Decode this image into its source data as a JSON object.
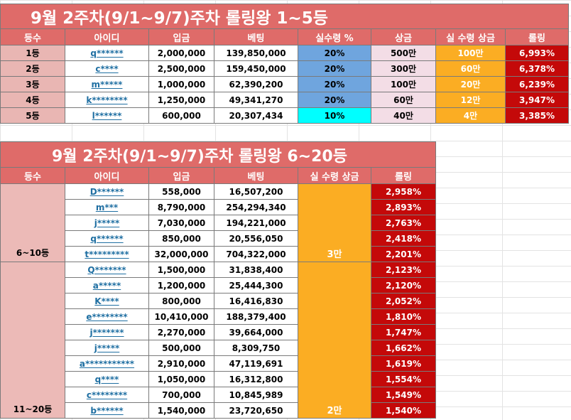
{
  "top": {
    "title": "9월 2주차(9/1~9/7)주차 롤링왕 1~5등",
    "headers": [
      "등수",
      "아이디",
      "입금",
      "베팅",
      "실수령 %",
      "상금",
      "실 수령 상금",
      "롤링"
    ],
    "rows": [
      {
        "rank": "1등",
        "id": "q******",
        "deposit": "2,000,000",
        "bet": "139,850,000",
        "pct": "20%",
        "prize": "500만",
        "received": "100만",
        "rolling": "6,993%"
      },
      {
        "rank": "2등",
        "id": "c****",
        "deposit": "2,500,000",
        "bet": "159,450,000",
        "pct": "20%",
        "prize": "300만",
        "received": "60만",
        "rolling": "6,378%"
      },
      {
        "rank": "3등",
        "id": "m*****",
        "deposit": "1,000,000",
        "bet": "62,390,200",
        "pct": "20%",
        "prize": "100만",
        "received": "20만",
        "rolling": "6,239%"
      },
      {
        "rank": "4등",
        "id": "k********",
        "deposit": "1,250,000",
        "bet": "49,341,270",
        "pct": "20%",
        "prize": "60만",
        "received": "12만",
        "rolling": "3,947%"
      },
      {
        "rank": "5등",
        "id": "l******",
        "deposit": "600,000",
        "bet": "20,307,434",
        "pct": "10%",
        "prize": "40만",
        "received": "4만",
        "rolling": "3,385%"
      }
    ]
  },
  "bottom": {
    "title": "9월 2주차(9/1~9/7)주차 롤링왕 6~20등",
    "headers": [
      "등수",
      "아이디",
      "입금",
      "베팅",
      "실 수령 상금",
      "롤링"
    ],
    "group1": {
      "rank": "6~10등",
      "received": "3만",
      "rows": [
        {
          "id": "D******",
          "deposit": "558,000",
          "bet": "16,507,200",
          "rolling": "2,958%"
        },
        {
          "id": "m***",
          "deposit": "8,790,000",
          "bet": "254,294,340",
          "rolling": "2,893%"
        },
        {
          "id": "j*****",
          "deposit": "7,030,000",
          "bet": "194,221,000",
          "rolling": "2,763%"
        },
        {
          "id": "q******",
          "deposit": "850,000",
          "bet": "20,556,050",
          "rolling": "2,418%"
        },
        {
          "id": "t*********",
          "deposit": "32,000,000",
          "bet": "704,322,000",
          "rolling": "2,201%"
        }
      ]
    },
    "group2": {
      "rank": "11~20등",
      "received": "2만",
      "rows": [
        {
          "id": "Q*******",
          "deposit": "1,500,000",
          "bet": "31,838,400",
          "rolling": "2,123%"
        },
        {
          "id": "a*****",
          "deposit": "1,200,000",
          "bet": "25,444,300",
          "rolling": "2,120%"
        },
        {
          "id": "K****",
          "deposit": "800,000",
          "bet": "16,416,830",
          "rolling": "2,052%"
        },
        {
          "id": "e********",
          "deposit": "10,410,000",
          "bet": "188,379,400",
          "rolling": "1,810%"
        },
        {
          "id": "j*******",
          "deposit": "2,270,000",
          "bet": "39,664,000",
          "rolling": "1,747%"
        },
        {
          "id": "j*****",
          "deposit": "500,000",
          "bet": "8,309,750",
          "rolling": "1,662%"
        },
        {
          "id": "a***********",
          "deposit": "2,910,000",
          "bet": "47,119,691",
          "rolling": "1,619%"
        },
        {
          "id": "q****",
          "deposit": "1,050,000",
          "bet": "16,312,800",
          "rolling": "1,554%"
        },
        {
          "id": "c********",
          "deposit": "700,000",
          "bet": "10,845,989",
          "rolling": "1,549%"
        },
        {
          "id": "b******",
          "deposit": "1,540,000",
          "bet": "23,720,650",
          "rolling": "1,540%"
        }
      ]
    }
  }
}
